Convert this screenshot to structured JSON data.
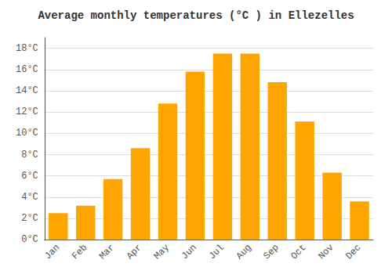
{
  "chart_data": {
    "type": "bar",
    "title": "Average monthly temperatures (°C ) in Ellezelles",
    "categories": [
      "Jan",
      "Feb",
      "Mar",
      "Apr",
      "May",
      "Jun",
      "Jul",
      "Aug",
      "Sep",
      "Oct",
      "Nov",
      "Dec"
    ],
    "values": [
      2.5,
      3.2,
      5.7,
      8.6,
      12.8,
      15.8,
      17.5,
      17.5,
      14.8,
      11.1,
      6.3,
      3.6
    ],
    "color": "#FFA500",
    "ylim": [
      0,
      19
    ],
    "yticks": [
      {
        "value": 0,
        "label": "0°C"
      },
      {
        "value": 2,
        "label": "2°C"
      },
      {
        "value": 4,
        "label": "4°C"
      },
      {
        "value": 6,
        "label": "6°C"
      },
      {
        "value": 8,
        "label": "8°C"
      },
      {
        "value": 10,
        "label": "10°C"
      },
      {
        "value": 12,
        "label": "12°C"
      },
      {
        "value": 14,
        "label": "14°C"
      },
      {
        "value": 16,
        "label": "16°C"
      },
      {
        "value": 18,
        "label": "18°C"
      }
    ],
    "grid": true
  }
}
